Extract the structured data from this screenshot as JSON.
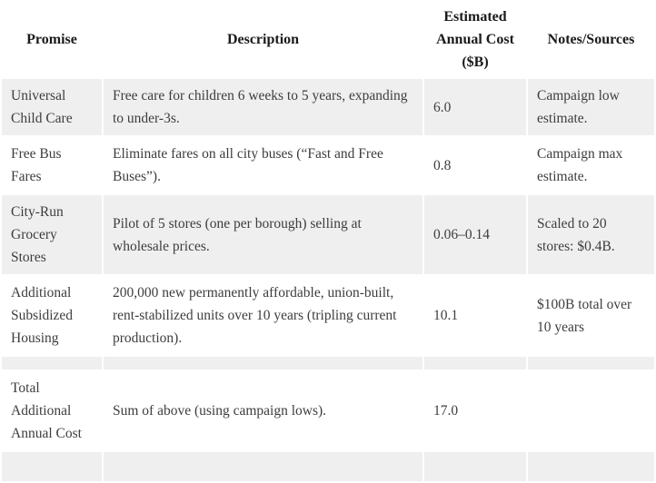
{
  "colors": {
    "row_stripe_bg": "#efefef",
    "page_bg": "#ffffff",
    "header_text": "#1a1a1a",
    "body_text": "#3d3d3d"
  },
  "chart_data": {
    "type": "table",
    "columns": [
      "Promise",
      "Description",
      "Estimated Annual Cost ($B)",
      "Notes/Sources"
    ],
    "rows": [
      [
        "Universal Child Care",
        "Free care for children 6 weeks to 5 years, expanding to under-3s.",
        "6.0",
        "Campaign low estimate."
      ],
      [
        "Free Bus Fares",
        "Eliminate fares on all city buses (“Fast and Free Buses”).",
        "0.8",
        "Campaign max estimate."
      ],
      [
        "City-Run Grocery Stores",
        "Pilot of 5 stores (one per borough) selling at wholesale prices.",
        "0.06–0.14",
        "Scaled to 20 stores: $0.4B."
      ],
      [
        "Additional Subsidized Housing",
        "200,000 new permanently affordable, union-built, rent-stabilized units over 10 years (tripling current production).",
        "10.1",
        "$100B total over 10 years"
      ],
      [
        "",
        "",
        "",
        ""
      ],
      [
        "Total Additional Annual Cost",
        "Sum of above (using campaign lows).",
        "17.0",
        ""
      ],
      [
        "",
        "",
        "",
        ""
      ]
    ]
  }
}
